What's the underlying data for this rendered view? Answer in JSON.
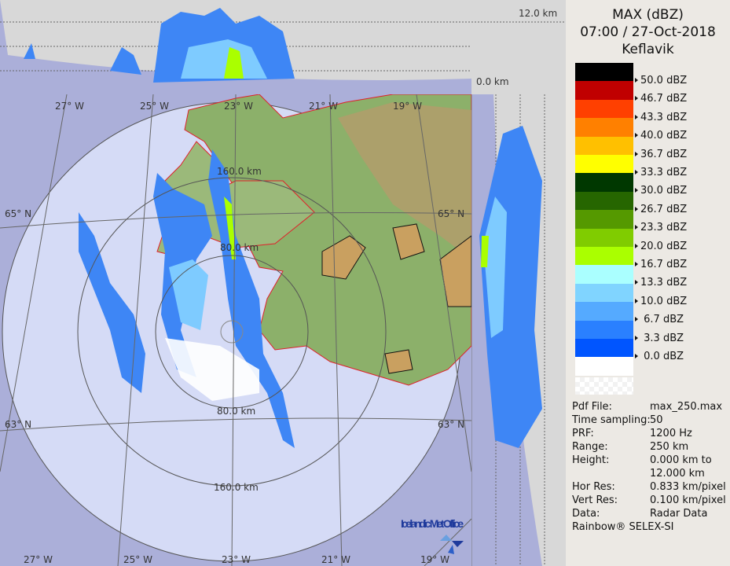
{
  "header": {
    "product": "MAX (dBZ)",
    "datetime": "07:00 / 27-Oct-2018",
    "site": "Keflavik"
  },
  "legend": {
    "items": [
      {
        "color": "#000000",
        "label": ""
      },
      {
        "color": "#c00000",
        "label": "50.0 dBZ"
      },
      {
        "color": "#ff4000",
        "label": "46.7 dBZ"
      },
      {
        "color": "#ff8000",
        "label": "43.3 dBZ"
      },
      {
        "color": "#ffc000",
        "label": "40.0 dBZ"
      },
      {
        "color": "#ffff00",
        "label": "36.7 dBZ"
      },
      {
        "color": "#003800",
        "label": "33.3 dBZ"
      },
      {
        "color": "#266600",
        "label": "30.0 dBZ"
      },
      {
        "color": "#559900",
        "label": "26.7 dBZ"
      },
      {
        "color": "#80cc00",
        "label": "23.3 dBZ"
      },
      {
        "color": "#aaff00",
        "label": "20.0 dBZ"
      },
      {
        "color": "#aaffff",
        "label": "16.7 dBZ"
      },
      {
        "color": "#80d4ff",
        "label": "13.3 dBZ"
      },
      {
        "color": "#55aaff",
        "label": "10.0 dBZ"
      },
      {
        "color": "#2a80ff",
        "label": " 6.7 dBZ"
      },
      {
        "color": "#0055ff",
        "label": " 3.3 dBZ"
      },
      {
        "color": "#ffffff",
        "label": " 0.0 dBZ"
      }
    ]
  },
  "info": [
    {
      "key": "Pdf File:",
      "value": "max_250.max"
    },
    {
      "key": "Time sampling:",
      "value": "50"
    },
    {
      "key": "PRF:",
      "value": "1200 Hz"
    },
    {
      "key": "Range:",
      "value": "250 km"
    },
    {
      "key": "Height:",
      "value": "0.000 km to"
    },
    {
      "key": "",
      "value": "12.000 km"
    },
    {
      "key": "Hor Res:",
      "value": "0.833 km/pixel"
    },
    {
      "key": "Vert Res:",
      "value": "0.100 km/pixel"
    },
    {
      "key": "Data:",
      "value": "Radar Data"
    }
  ],
  "credit": "Rainbow® SELEX-SI",
  "map": {
    "height_top": "12.0 km",
    "height_bottom": "0.0 km",
    "lon_top": [
      "27° W",
      "25° W",
      "23° W",
      "21° W",
      "19° W"
    ],
    "lon_bottom": [
      "27° W",
      "25° W",
      "23° W",
      "21° W",
      "19° W"
    ],
    "lat_left": [
      "65° N",
      "63° N"
    ],
    "lat_right": [
      "65° N",
      "63° N"
    ],
    "ring_labels": [
      "160.0 km",
      "80.0 km",
      "80.0 km",
      "160.0 km"
    ],
    "logo": "Icelandic Met Office",
    "colors": {
      "outside": "#abafd9",
      "coverage": "#d5dbf6",
      "land_green": "#7fae6a",
      "land_tan": "#c9a673",
      "coast": "#e0202a"
    }
  }
}
